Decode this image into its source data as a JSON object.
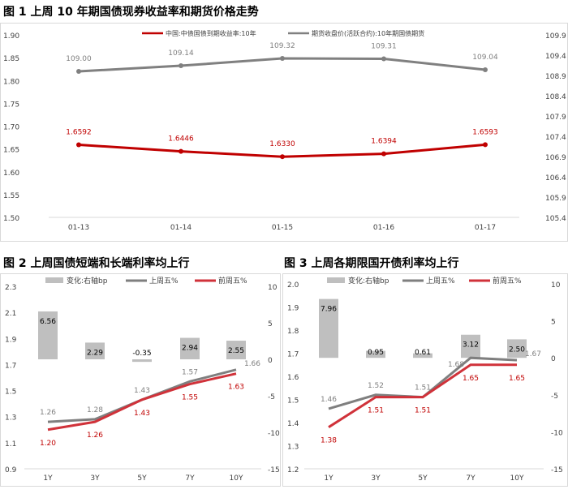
{
  "chart_data": [
    {
      "type": "line",
      "title": "图 1  上周 10 年期国债现券收益率和期货价格走势",
      "categories": [
        "01-13",
        "01-14",
        "01-15",
        "01-16",
        "01-17"
      ],
      "ylim": [
        1.5,
        1.9
      ],
      "yticks": [
        "1.50",
        "1.55",
        "1.60",
        "1.65",
        "1.70",
        "1.75",
        "1.80",
        "1.85",
        "1.90"
      ],
      "y2lim": [
        105.4,
        109.9
      ],
      "y2ticks": [
        "105.4",
        "105.9",
        "106.4",
        "106.9",
        "107.4",
        "107.9",
        "108.4",
        "108.9",
        "109.4",
        "109.9"
      ],
      "legend_position": "top",
      "grid": false,
      "series": [
        {
          "name": "中国:中债国债到期收益率:10年",
          "axis": "left",
          "color": "#c00000",
          "values": [
            1.6592,
            1.6446,
            1.633,
            1.6394,
            1.6593
          ],
          "labels": [
            "1.6592",
            "1.6446",
            "1.6330",
            "1.6394",
            "1.6593"
          ]
        },
        {
          "name": "期货收盘价(活跃合约):10年期国债期货",
          "axis": "right",
          "color": "#808080",
          "values": [
            109.0,
            109.14,
            109.32,
            109.31,
            109.04
          ],
          "labels": [
            "109.00",
            "109.14",
            "109.32",
            "109.31",
            "109.04"
          ]
        }
      ]
    },
    {
      "type": "bar+line",
      "title": "图 2  上周国债短端和长端利率均上行",
      "categories": [
        "1Y",
        "3Y",
        "5Y",
        "7Y",
        "10Y"
      ],
      "ylim": [
        0.9,
        2.3
      ],
      "yticks": [
        "0.9",
        "1.1",
        "1.3",
        "1.5",
        "1.7",
        "1.9",
        "2.1",
        "2.3"
      ],
      "y2lim": [
        -15,
        10
      ],
      "y2ticks": [
        "-15",
        "-10",
        "-5",
        "0",
        "5",
        "10"
      ],
      "legend_position": "top",
      "grid": false,
      "series": [
        {
          "name": "变化:右轴bp",
          "kind": "bar",
          "axis": "right",
          "color": "#bfbfbf",
          "values": [
            6.56,
            2.29,
            -0.35,
            2.94,
            2.55
          ],
          "labels": [
            "6.56",
            "2.29",
            "-0.35",
            "2.94",
            "2.55"
          ]
        },
        {
          "name": "上周五%",
          "kind": "line",
          "axis": "left",
          "color": "#7f7f7f",
          "values": [
            1.26,
            1.28,
            1.43,
            1.57,
            1.66
          ],
          "labels": [
            "1.26",
            "1.28",
            "1.43",
            "1.57",
            "1.66"
          ]
        },
        {
          "name": "前周五%",
          "kind": "line",
          "axis": "left",
          "color": "#d0323a",
          "values": [
            1.2,
            1.26,
            1.43,
            1.55,
            1.63
          ],
          "labels": [
            "1.20",
            "1.26",
            "1.43",
            "1.55",
            "1.63"
          ]
        }
      ]
    },
    {
      "type": "bar+line",
      "title": "图 3  上周各期限国开债利率均上行",
      "categories": [
        "1Y",
        "3Y",
        "5Y",
        "7Y",
        "10Y"
      ],
      "ylim": [
        1.2,
        2.0
      ],
      "yticks": [
        "1.2",
        "1.3",
        "1.4",
        "1.5",
        "1.6",
        "1.7",
        "1.8",
        "1.9",
        "2.0"
      ],
      "y2lim": [
        -15,
        10
      ],
      "y2ticks": [
        "-15",
        "-10",
        "-5",
        "0",
        "5",
        "10"
      ],
      "legend_position": "top",
      "grid": false,
      "series": [
        {
          "name": "变化:右轴bp",
          "kind": "bar",
          "axis": "right",
          "color": "#bfbfbf",
          "values": [
            7.96,
            0.95,
            0.61,
            3.12,
            2.5
          ],
          "labels": [
            "7.96",
            "0.95",
            "0.61",
            "3.12",
            "2.50"
          ]
        },
        {
          "name": "上周五%",
          "kind": "line",
          "axis": "left",
          "color": "#7f7f7f",
          "values": [
            1.46,
            1.52,
            1.51,
            1.68,
            1.67
          ],
          "labels": [
            "1.46",
            "1.52",
            "1.51",
            "1.68",
            "1.67"
          ]
        },
        {
          "name": "前周五%",
          "kind": "line",
          "axis": "left",
          "color": "#d0323a",
          "values": [
            1.38,
            1.51,
            1.51,
            1.65,
            1.65
          ],
          "labels": [
            "1.38",
            "1.51",
            "1.51",
            "1.65",
            "1.65"
          ]
        }
      ]
    }
  ]
}
